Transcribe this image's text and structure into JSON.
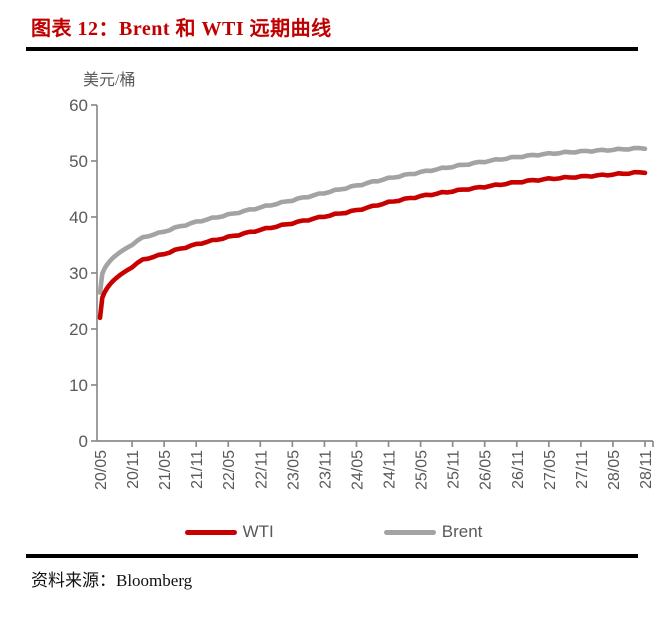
{
  "title": "图表 12：Brent 和 WTI 远期曲线",
  "source": "资料来源：Bloomberg",
  "colors": {
    "title_red": "#c00000",
    "wti_red": "#c80000",
    "brent_gray": "#a3a3a3",
    "axis_line": "#8c8c8c",
    "tick_text": "#595959",
    "rule_black": "#000000"
  },
  "legend": {
    "wti_label": "WTI",
    "brent_label": "Brent"
  },
  "chart_data": {
    "type": "line",
    "title": "Brent 和 WTI 远期曲线",
    "ylabel": "美元/桶",
    "xlabel": "",
    "ylim": [
      0,
      60
    ],
    "yticks": [
      0,
      10,
      20,
      30,
      40,
      50,
      60
    ],
    "grid": false,
    "legend_position": "bottom",
    "categories": [
      "20/05",
      "20/11",
      "21/05",
      "21/11",
      "22/05",
      "22/11",
      "23/05",
      "23/11",
      "24/05",
      "24/11",
      "25/05",
      "25/11",
      "26/05",
      "26/11",
      "27/05",
      "27/11",
      "28/05",
      "28/11"
    ],
    "series": [
      {
        "name": "WTI",
        "color": "#c80000",
        "values": [
          22.0,
          31.0,
          33.4,
          35.1,
          36.4,
          37.7,
          38.9,
          40.1,
          41.2,
          42.6,
          43.7,
          44.6,
          45.4,
          46.2,
          46.8,
          47.2,
          47.6,
          48.0
        ]
      },
      {
        "name": "Brent",
        "color": "#a3a3a3",
        "values": [
          26.5,
          35.0,
          37.4,
          39.1,
          40.4,
          41.7,
          43.0,
          44.3,
          45.6,
          46.9,
          48.0,
          49.0,
          49.9,
          50.7,
          51.3,
          51.7,
          52.0,
          52.3
        ]
      }
    ]
  }
}
